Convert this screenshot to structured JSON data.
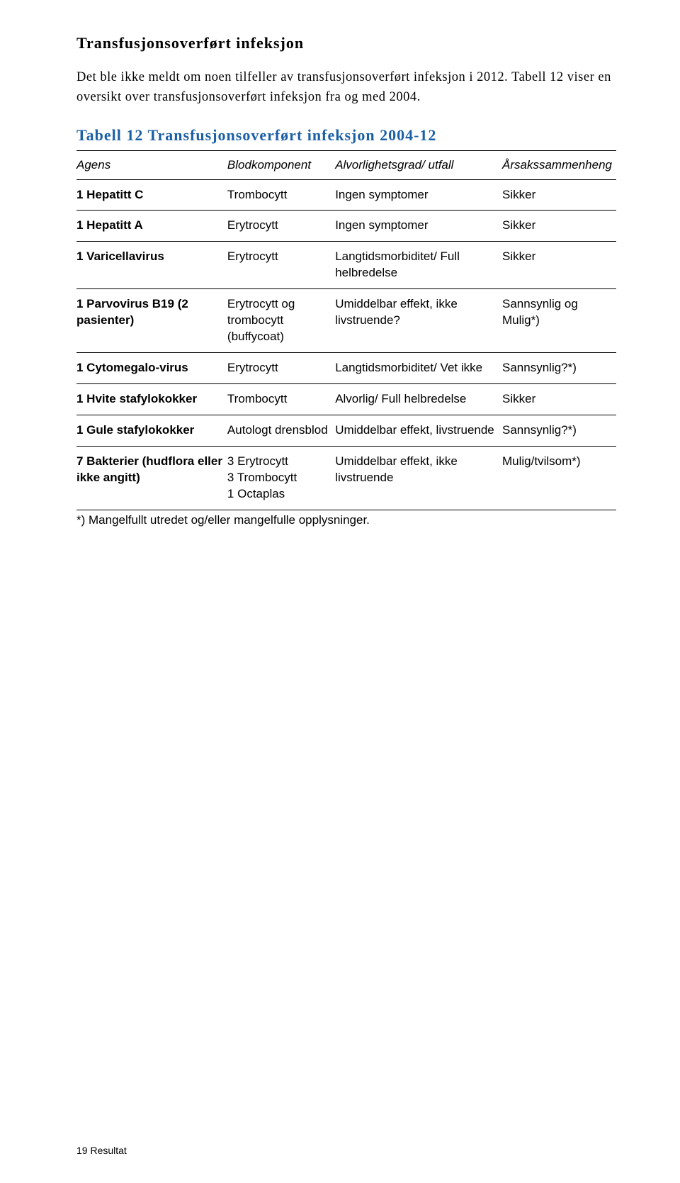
{
  "heading": "Transfusjonsoverført infeksjon",
  "paragraph": "Det ble ikke meldt om noen tilfeller av transfusjonsoverført infeksjon i 2012. Tabell 12 viser en oversikt over transfusjonsoverført infeksjon fra og med 2004.",
  "table_caption": "Tabell 12 Transfusjonsoverført infeksjon 2004-12",
  "columns": [
    "Agens",
    "Blodkomponent",
    "Alvorlighetsgrad/ utfall",
    "Årsakssammenheng"
  ],
  "rows": [
    {
      "agens": "1 Hepatitt C",
      "blod": "Trombocytt",
      "utfall": "Ingen symptomer",
      "arsak": "Sikker"
    },
    {
      "agens": "1 Hepatitt A",
      "blod": "Erytrocytt",
      "utfall": "Ingen symptomer",
      "arsak": "Sikker"
    },
    {
      "agens": "1 Varicellavirus",
      "blod": "Erytrocytt",
      "utfall": "Langtidsmorbiditet/ Full helbredelse",
      "arsak": "Sikker"
    },
    {
      "agens": "1 Parvovirus B19 (2 pasienter)",
      "blod": "Erytrocytt og trombocytt (buffycoat)",
      "utfall": "Umiddelbar effekt, ikke livstruende?",
      "arsak": "Sannsynlig og Mulig*)"
    },
    {
      "agens": "1 Cytomegalo-virus",
      "blod": "Erytrocytt",
      "utfall": "Langtidsmorbiditet/ Vet ikke",
      "arsak": "Sannsynlig?*)"
    },
    {
      "agens": "1 Hvite stafylokokker",
      "blod": "Trombocytt",
      "utfall": "Alvorlig/ Full helbredelse",
      "arsak": "Sikker"
    },
    {
      "agens": "1 Gule stafylokokker",
      "blod": "Autologt drensblod",
      "utfall": "Umiddelbar effekt, livstruende",
      "arsak": "Sannsynlig?*)"
    },
    {
      "agens": "7 Bakterier (hudflora eller ikke angitt)",
      "blod": "3 Erytrocytt\n3 Trombocytt\n1 Octaplas",
      "utfall": "Umiddelbar effekt, ikke livstruende",
      "arsak": "Mulig/tvilsom*)"
    }
  ],
  "footnote": "*) Mangelfullt utredet og/eller mangelfulle opplysninger.",
  "footer": "19  Resultat"
}
